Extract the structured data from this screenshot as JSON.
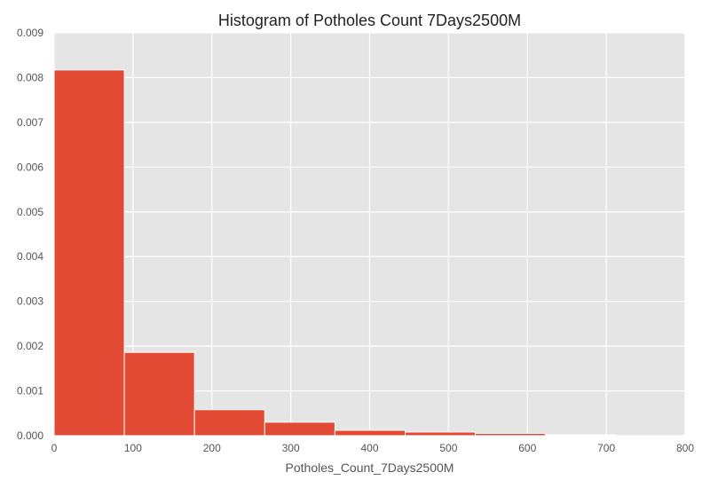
{
  "chart_data": {
    "type": "bar",
    "title": "Histogram of Potholes Count 7Days2500M",
    "xlabel": "Potholes_Count_7Days2500M",
    "ylabel": "",
    "xlim": [
      0,
      800
    ],
    "ylim": [
      0,
      0.009
    ],
    "xticks": [
      "0",
      "100",
      "200",
      "300",
      "400",
      "500",
      "600",
      "700",
      "800"
    ],
    "yticks": [
      "0.000",
      "0.001",
      "0.002",
      "0.003",
      "0.004",
      "0.005",
      "0.006",
      "0.007",
      "0.008",
      "0.009"
    ],
    "grid": true,
    "bins": [
      {
        "x0": 0,
        "x1": 89,
        "value": 0.00817
      },
      {
        "x0": 89,
        "x1": 178,
        "value": 0.00186
      },
      {
        "x0": 178,
        "x1": 267,
        "value": 0.00058
      },
      {
        "x0": 267,
        "x1": 356,
        "value": 0.0003
      },
      {
        "x0": 356,
        "x1": 445,
        "value": 0.00012
      },
      {
        "x0": 445,
        "x1": 534,
        "value": 8e-05
      },
      {
        "x0": 534,
        "x1": 623,
        "value": 5e-05
      },
      {
        "x0": 623,
        "x1": 712,
        "value": 2e-05
      }
    ],
    "colors": {
      "bar": "#E24A33",
      "plot_bg": "#E5E5E5",
      "grid": "#FFFFFF"
    }
  }
}
